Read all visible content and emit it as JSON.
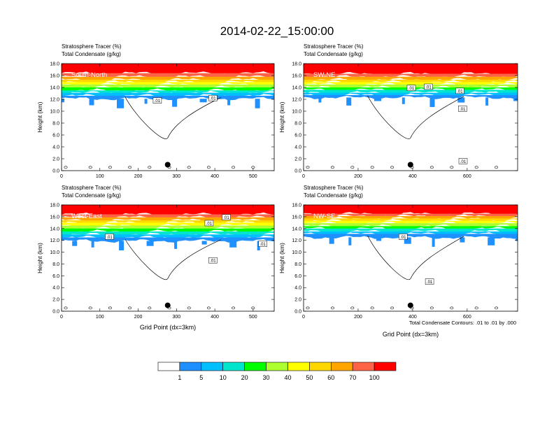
{
  "title": "2014-02-22_15:00:00",
  "footer_note": "Total Condensate Contours: .01 to .01 by .000",
  "colors": {
    "bins": [
      "#ffffff",
      "#1e90ff",
      "#00bfff",
      "#00e5cc",
      "#00ff00",
      "#adff2f",
      "#ffff00",
      "#ffd700",
      "#ffa500",
      "#ff6347",
      "#ff0000"
    ]
  },
  "colorbar": {
    "labels": [
      "1",
      "5",
      "10",
      "20",
      "30",
      "40",
      "50",
      "60",
      "70",
      "100"
    ]
  },
  "chart_data": [
    {
      "type": "heatmap",
      "title_line1": "Stratosphere Tracer   (%)",
      "title_line2": "Total Condensate   (g/kg)",
      "panel_label": "South-North",
      "ylabel": "Height (km)",
      "xlabel": "",
      "xlim": [
        0,
        555
      ],
      "ylim": [
        0,
        18
      ],
      "xticks": [
        "0",
        "100",
        "200",
        "300",
        "400",
        "500"
      ],
      "xtick_values": [
        0,
        100,
        200,
        300,
        400,
        500
      ],
      "yticks": [
        "0.0",
        "2.0",
        "4.0",
        "6.0",
        "8.0",
        "10.0",
        "12.0",
        "14.0",
        "16.0",
        "18.0"
      ],
      "layers_km": [
        {
          "top": 18.0,
          "base": 16.4,
          "bin": 10
        },
        {
          "top": 16.4,
          "base": 15.8,
          "bin": 9
        },
        {
          "top": 15.8,
          "base": 15.3,
          "bin": 8
        },
        {
          "top": 15.3,
          "base": 14.9,
          "bin": 7
        },
        {
          "top": 14.9,
          "base": 14.5,
          "bin": 6
        },
        {
          "top": 14.5,
          "base": 14.0,
          "bin": 5
        },
        {
          "top": 14.0,
          "base": 13.5,
          "bin": 4
        },
        {
          "top": 13.5,
          "base": 13.1,
          "bin": 3
        },
        {
          "top": 13.1,
          "base": 12.6,
          "bin": 2
        },
        {
          "top": 12.6,
          "base": 12.1,
          "bin": 1
        }
      ],
      "contour_labels": [
        {
          "text": ".01",
          "x": 250,
          "y": 11.7
        },
        {
          "text": ".01",
          "x": 395,
          "y": 12.1
        }
      ],
      "marker": {
        "x": 277,
        "y": 1.0
      }
    },
    {
      "type": "heatmap",
      "title_line1": "Stratosphere Tracer   (%)",
      "title_line2": "Total Condensate   (g/kg)",
      "panel_label": "SW-NE",
      "ylabel": "Height (km)",
      "xlabel": "",
      "xlim": [
        0,
        785
      ],
      "ylim": [
        0,
        18
      ],
      "xticks": [
        "0",
        "200",
        "400",
        "600"
      ],
      "xtick_values": [
        0,
        200,
        400,
        600
      ],
      "yticks": [
        "0.0",
        "2.0",
        "4.0",
        "6.0",
        "8.0",
        "10.0",
        "12.0",
        "14.0",
        "16.0",
        "18.0"
      ],
      "layers_km": [
        {
          "top": 18.0,
          "base": 16.3,
          "bin": 10
        },
        {
          "top": 16.3,
          "base": 15.8,
          "bin": 9
        },
        {
          "top": 15.8,
          "base": 15.3,
          "bin": 8
        },
        {
          "top": 15.3,
          "base": 14.9,
          "bin": 7
        },
        {
          "top": 14.9,
          "base": 14.5,
          "bin": 6
        },
        {
          "top": 14.5,
          "base": 14.0,
          "bin": 5
        },
        {
          "top": 14.0,
          "base": 13.6,
          "bin": 4
        },
        {
          "top": 13.6,
          "base": 13.1,
          "bin": 3
        },
        {
          "top": 13.1,
          "base": 12.7,
          "bin": 2
        },
        {
          "top": 12.7,
          "base": 12.3,
          "bin": 1
        }
      ],
      "contour_labels": [
        {
          "text": ".01",
          "x": 395,
          "y": 13.8
        },
        {
          "text": ".01",
          "x": 458,
          "y": 14.0
        },
        {
          "text": ".01",
          "x": 573,
          "y": 13.3
        },
        {
          "text": ".01",
          "x": 583,
          "y": 10.3
        },
        {
          "text": ".01",
          "x": 585,
          "y": 1.5
        }
      ],
      "marker": {
        "x": 392,
        "y": 1.0
      }
    },
    {
      "type": "heatmap",
      "title_line1": "Stratosphere Tracer   (%)",
      "title_line2": "Total Condensate   (g/kg)",
      "panel_label": "West-East",
      "ylabel": "Height (km)",
      "xlabel": "Grid Point (dx=3km)",
      "xlim": [
        0,
        555
      ],
      "ylim": [
        0,
        18
      ],
      "xticks": [
        "0",
        "100",
        "200",
        "300",
        "400",
        "500"
      ],
      "xtick_values": [
        0,
        100,
        200,
        300,
        400,
        500
      ],
      "yticks": [
        "0.0",
        "2.0",
        "4.0",
        "6.0",
        "8.0",
        "10.0",
        "12.0",
        "14.0",
        "16.0",
        "18.0"
      ],
      "layers_km": [
        {
          "top": 18.0,
          "base": 16.4,
          "bin": 10
        },
        {
          "top": 16.4,
          "base": 15.9,
          "bin": 9
        },
        {
          "top": 15.9,
          "base": 15.4,
          "bin": 8
        },
        {
          "top": 15.4,
          "base": 15.0,
          "bin": 7
        },
        {
          "top": 15.0,
          "base": 14.5,
          "bin": 6
        },
        {
          "top": 14.5,
          "base": 14.0,
          "bin": 5
        },
        {
          "top": 14.0,
          "base": 13.5,
          "bin": 4
        },
        {
          "top": 13.5,
          "base": 13.0,
          "bin": 3
        },
        {
          "top": 13.0,
          "base": 12.5,
          "bin": 2
        },
        {
          "top": 12.5,
          "base": 11.9,
          "bin": 1
        }
      ],
      "contour_labels": [
        {
          "text": ".01",
          "x": 125,
          "y": 12.5
        },
        {
          "text": ".01",
          "x": 385,
          "y": 14.8
        },
        {
          "text": ".01",
          "x": 430,
          "y": 15.8
        },
        {
          "text": ".01",
          "x": 395,
          "y": 8.5
        },
        {
          "text": ".01",
          "x": 525,
          "y": 11.3
        }
      ],
      "marker": {
        "x": 277,
        "y": 1.0
      }
    },
    {
      "type": "heatmap",
      "title_line1": "Stratosphere Tracer   (%)",
      "title_line2": "Total Condensate   (g/kg)",
      "panel_label": "NW-SE",
      "ylabel": "Height (km)",
      "xlabel": "Grid Point (dx=3km)",
      "xlim": [
        0,
        785
      ],
      "ylim": [
        0,
        18
      ],
      "xticks": [
        "0",
        "200",
        "400",
        "600"
      ],
      "xtick_values": [
        0,
        200,
        400,
        600
      ],
      "yticks": [
        "0.0",
        "2.0",
        "4.0",
        "6.0",
        "8.0",
        "10.0",
        "12.0",
        "14.0",
        "16.0",
        "18.0"
      ],
      "layers_km": [
        {
          "top": 18.0,
          "base": 16.5,
          "bin": 10
        },
        {
          "top": 16.5,
          "base": 16.1,
          "bin": 9
        },
        {
          "top": 16.1,
          "base": 15.7,
          "bin": 8
        },
        {
          "top": 15.7,
          "base": 15.3,
          "bin": 7
        },
        {
          "top": 15.3,
          "base": 14.9,
          "bin": 6
        },
        {
          "top": 14.9,
          "base": 14.4,
          "bin": 5
        },
        {
          "top": 14.4,
          "base": 14.0,
          "bin": 4
        },
        {
          "top": 14.0,
          "base": 13.5,
          "bin": 3
        },
        {
          "top": 13.5,
          "base": 13.1,
          "bin": 2
        },
        {
          "top": 13.1,
          "base": 12.5,
          "bin": 1
        }
      ],
      "contour_labels": [
        {
          "text": ".01",
          "x": 365,
          "y": 12.5
        },
        {
          "text": ".01",
          "x": 462,
          "y": 4.9
        }
      ],
      "marker": {
        "x": 392,
        "y": 1.0
      }
    }
  ]
}
